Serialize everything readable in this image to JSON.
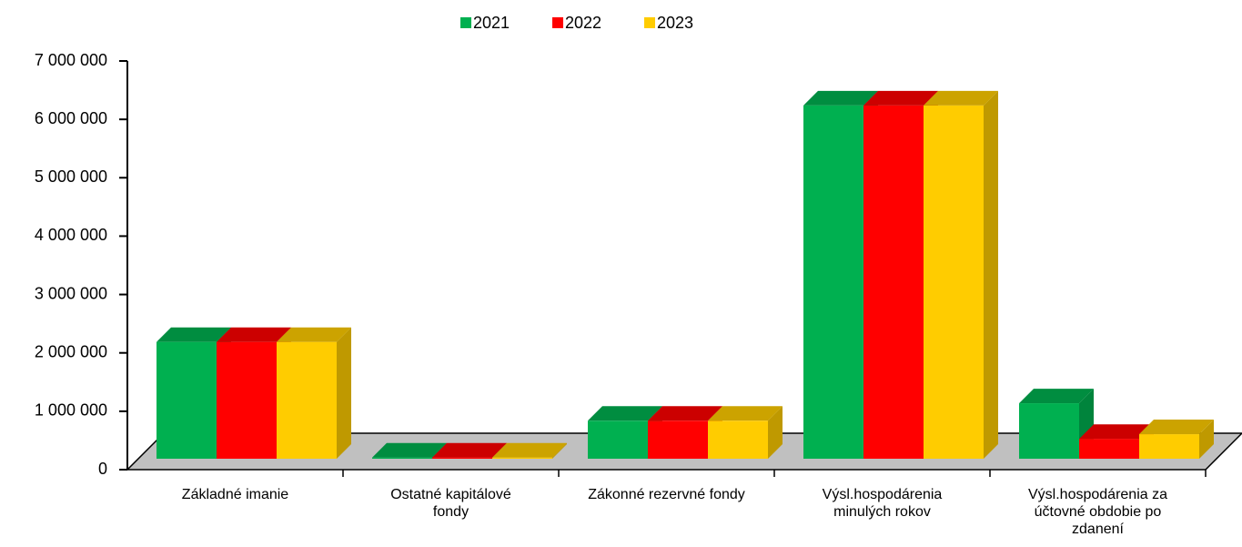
{
  "chart_data": {
    "type": "bar3d",
    "categories": [
      "Základné imanie",
      "Ostatné kapitálové fondy",
      "Zákonné rezervné fondy",
      "Výsl.hospodárenia minulých rokov",
      "Výsl.hospodárenia za účtovné obdobie po zdanení"
    ],
    "series": [
      {
        "name": "2021",
        "color": "#00b050",
        "values": [
          2000000,
          20000,
          650000,
          6050000,
          950000
        ]
      },
      {
        "name": "2022",
        "color": "#ff0000",
        "values": [
          2000000,
          20000,
          650000,
          6050000,
          340000
        ]
      },
      {
        "name": "2023",
        "color": "#ffcc00",
        "values": [
          2000000,
          20000,
          650000,
          6050000,
          420000
        ]
      }
    ],
    "ylim": [
      0,
      7000000
    ],
    "yticks": [
      0,
      {
        "value": 1000000,
        "label": "1 000 000"
      },
      {
        "value": 2000000,
        "label": "2 000 000"
      },
      {
        "value": 3000000,
        "label": "3 000 000"
      },
      {
        "value": 4000000,
        "label": "4 000 000"
      },
      {
        "value": 5000000,
        "label": "5 000 000"
      },
      {
        "value": 6000000,
        "label": "6 000 000"
      },
      {
        "value": 7000000,
        "label": "7 000 000"
      }
    ],
    "legend": "top"
  }
}
